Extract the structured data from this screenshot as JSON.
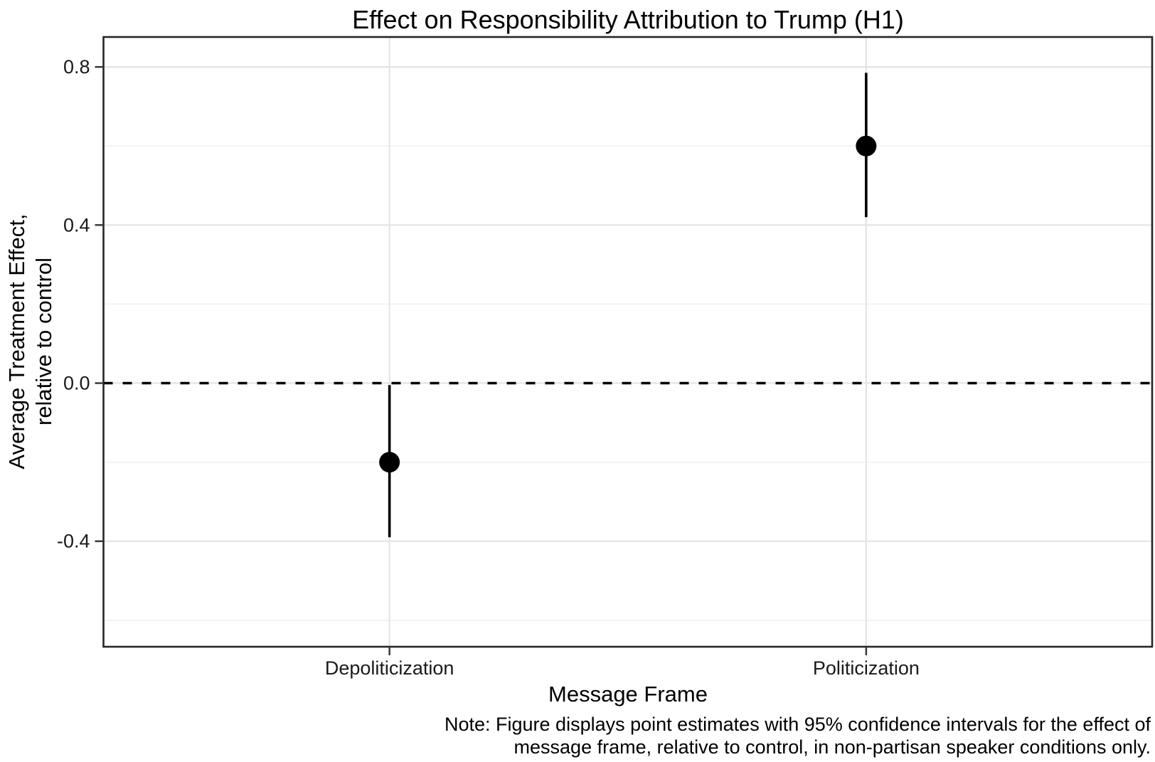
{
  "figure": {
    "title": "Effect on Responsibility Attribution to Trump (H1)",
    "x_axis_title": "Message Frame",
    "y_axis_title_line1": "Average Treatment Effect,",
    "y_axis_title_line2": "relative to control",
    "note_line1": "Note: Figure displays point estimates with 95% confidence intervals for the effect of",
    "note_line2": "message frame, relative to control, in non-partisan speaker conditions only."
  },
  "chart_data": {
    "type": "scatter",
    "variant": "point-estimates-with-95ci-error-bars",
    "title": "Effect on Responsibility Attribution to Trump (H1)",
    "xlabel": "Message Frame",
    "ylabel": "Average Treatment Effect, relative to control",
    "categories": [
      "Depoliticization",
      "Politicization"
    ],
    "series": [
      {
        "name": "Average treatment effect relative to control",
        "points": [
          {
            "category": "Depoliticization",
            "estimate": -0.2,
            "ci_low": -0.39,
            "ci_high": -0.005
          },
          {
            "category": "Politicization",
            "estimate": 0.6,
            "ci_low": 0.42,
            "ci_high": 0.785
          }
        ]
      }
    ],
    "ci_level": "95%",
    "reference_line_y": 0.0,
    "reference_line_style": "dashed",
    "ylim": [
      -0.67,
      0.87
    ],
    "yticks_major": [
      0.8,
      0.4,
      0.0,
      -0.4
    ],
    "ytick_labels": [
      "0.8",
      "0.4",
      "0.0",
      "-0.4"
    ],
    "yticks_minor": [
      0.6,
      0.2,
      -0.2,
      -0.6
    ],
    "grid": "horizontal major and minor gridlines plus vertical gridline per category, light gray on white",
    "legend": false,
    "note": "Note: Figure displays point estimates with 95% confidence intervals for the effect of message frame, relative to control, in non-partisan speaker conditions only."
  },
  "colors": {
    "background": "#ffffff",
    "point": "#000000",
    "error_bar": "#000000",
    "reference_line": "#000000",
    "grid_major": "#e4e4e4",
    "grid_minor": "#f2f2f2",
    "panel_border": "#262626",
    "tick_mark": "#333333",
    "text": "#000000"
  }
}
